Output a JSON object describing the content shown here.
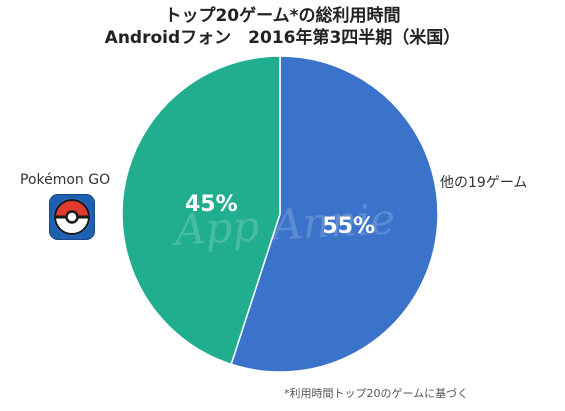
{
  "chart_data": {
    "type": "pie",
    "title": "トップ20ゲーム*の総利用時間",
    "subtitle": "Androidフォン　2016年第3四半期（米国）",
    "slices": [
      {
        "label": "他の19ゲーム",
        "value": 55,
        "value_label": "55%",
        "color": "#3a73c9"
      },
      {
        "label": "Pokémon GO",
        "value": 45,
        "value_label": "45%",
        "color": "#20ae8f"
      }
    ],
    "footnote": "*利用時間トップ20のゲームに基づく",
    "watermark": "App Annie"
  },
  "icons": {
    "pokemon_go_app": "pokeball-app-icon"
  }
}
